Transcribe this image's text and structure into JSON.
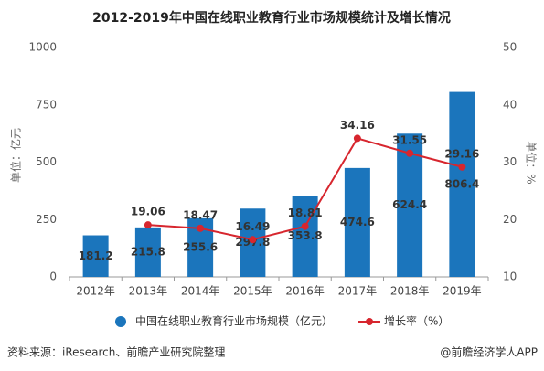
{
  "chart_data": {
    "type": "bar_line",
    "title": "2012-2019年中国在线职业教育行业市场规模统计及增长情况",
    "y_label": "单位：亿元",
    "y2_label": "单位：%",
    "categories": [
      "2012年",
      "2013年",
      "2014年",
      "2015年",
      "2016年",
      "2017年",
      "2018年",
      "2019年"
    ],
    "series": [
      {
        "name": "中国在线职业教育行业市场规模（亿元）",
        "color": "#1b75bc",
        "kind": "bar",
        "values": [
          181.2,
          215.8,
          255.6,
          297.8,
          353.8,
          474.6,
          624.4,
          806.4
        ]
      },
      {
        "name": "增长率（%）",
        "color": "#d7262e",
        "kind": "line",
        "axis": "y2",
        "values": [
          null,
          19.06,
          18.47,
          16.49,
          18.81,
          34.16,
          31.55,
          29.16
        ]
      }
    ],
    "ylim": [
      0,
      1000
    ],
    "yticks": [
      0,
      250,
      500,
      750,
      1000
    ],
    "y2lim": [
      10,
      50
    ],
    "y2ticks": [
      10,
      20,
      30,
      40,
      50
    ],
    "source": "资料来源：iResearch、前瞻产业研究院整理",
    "credit": "@前瞻经济学人APP"
  }
}
